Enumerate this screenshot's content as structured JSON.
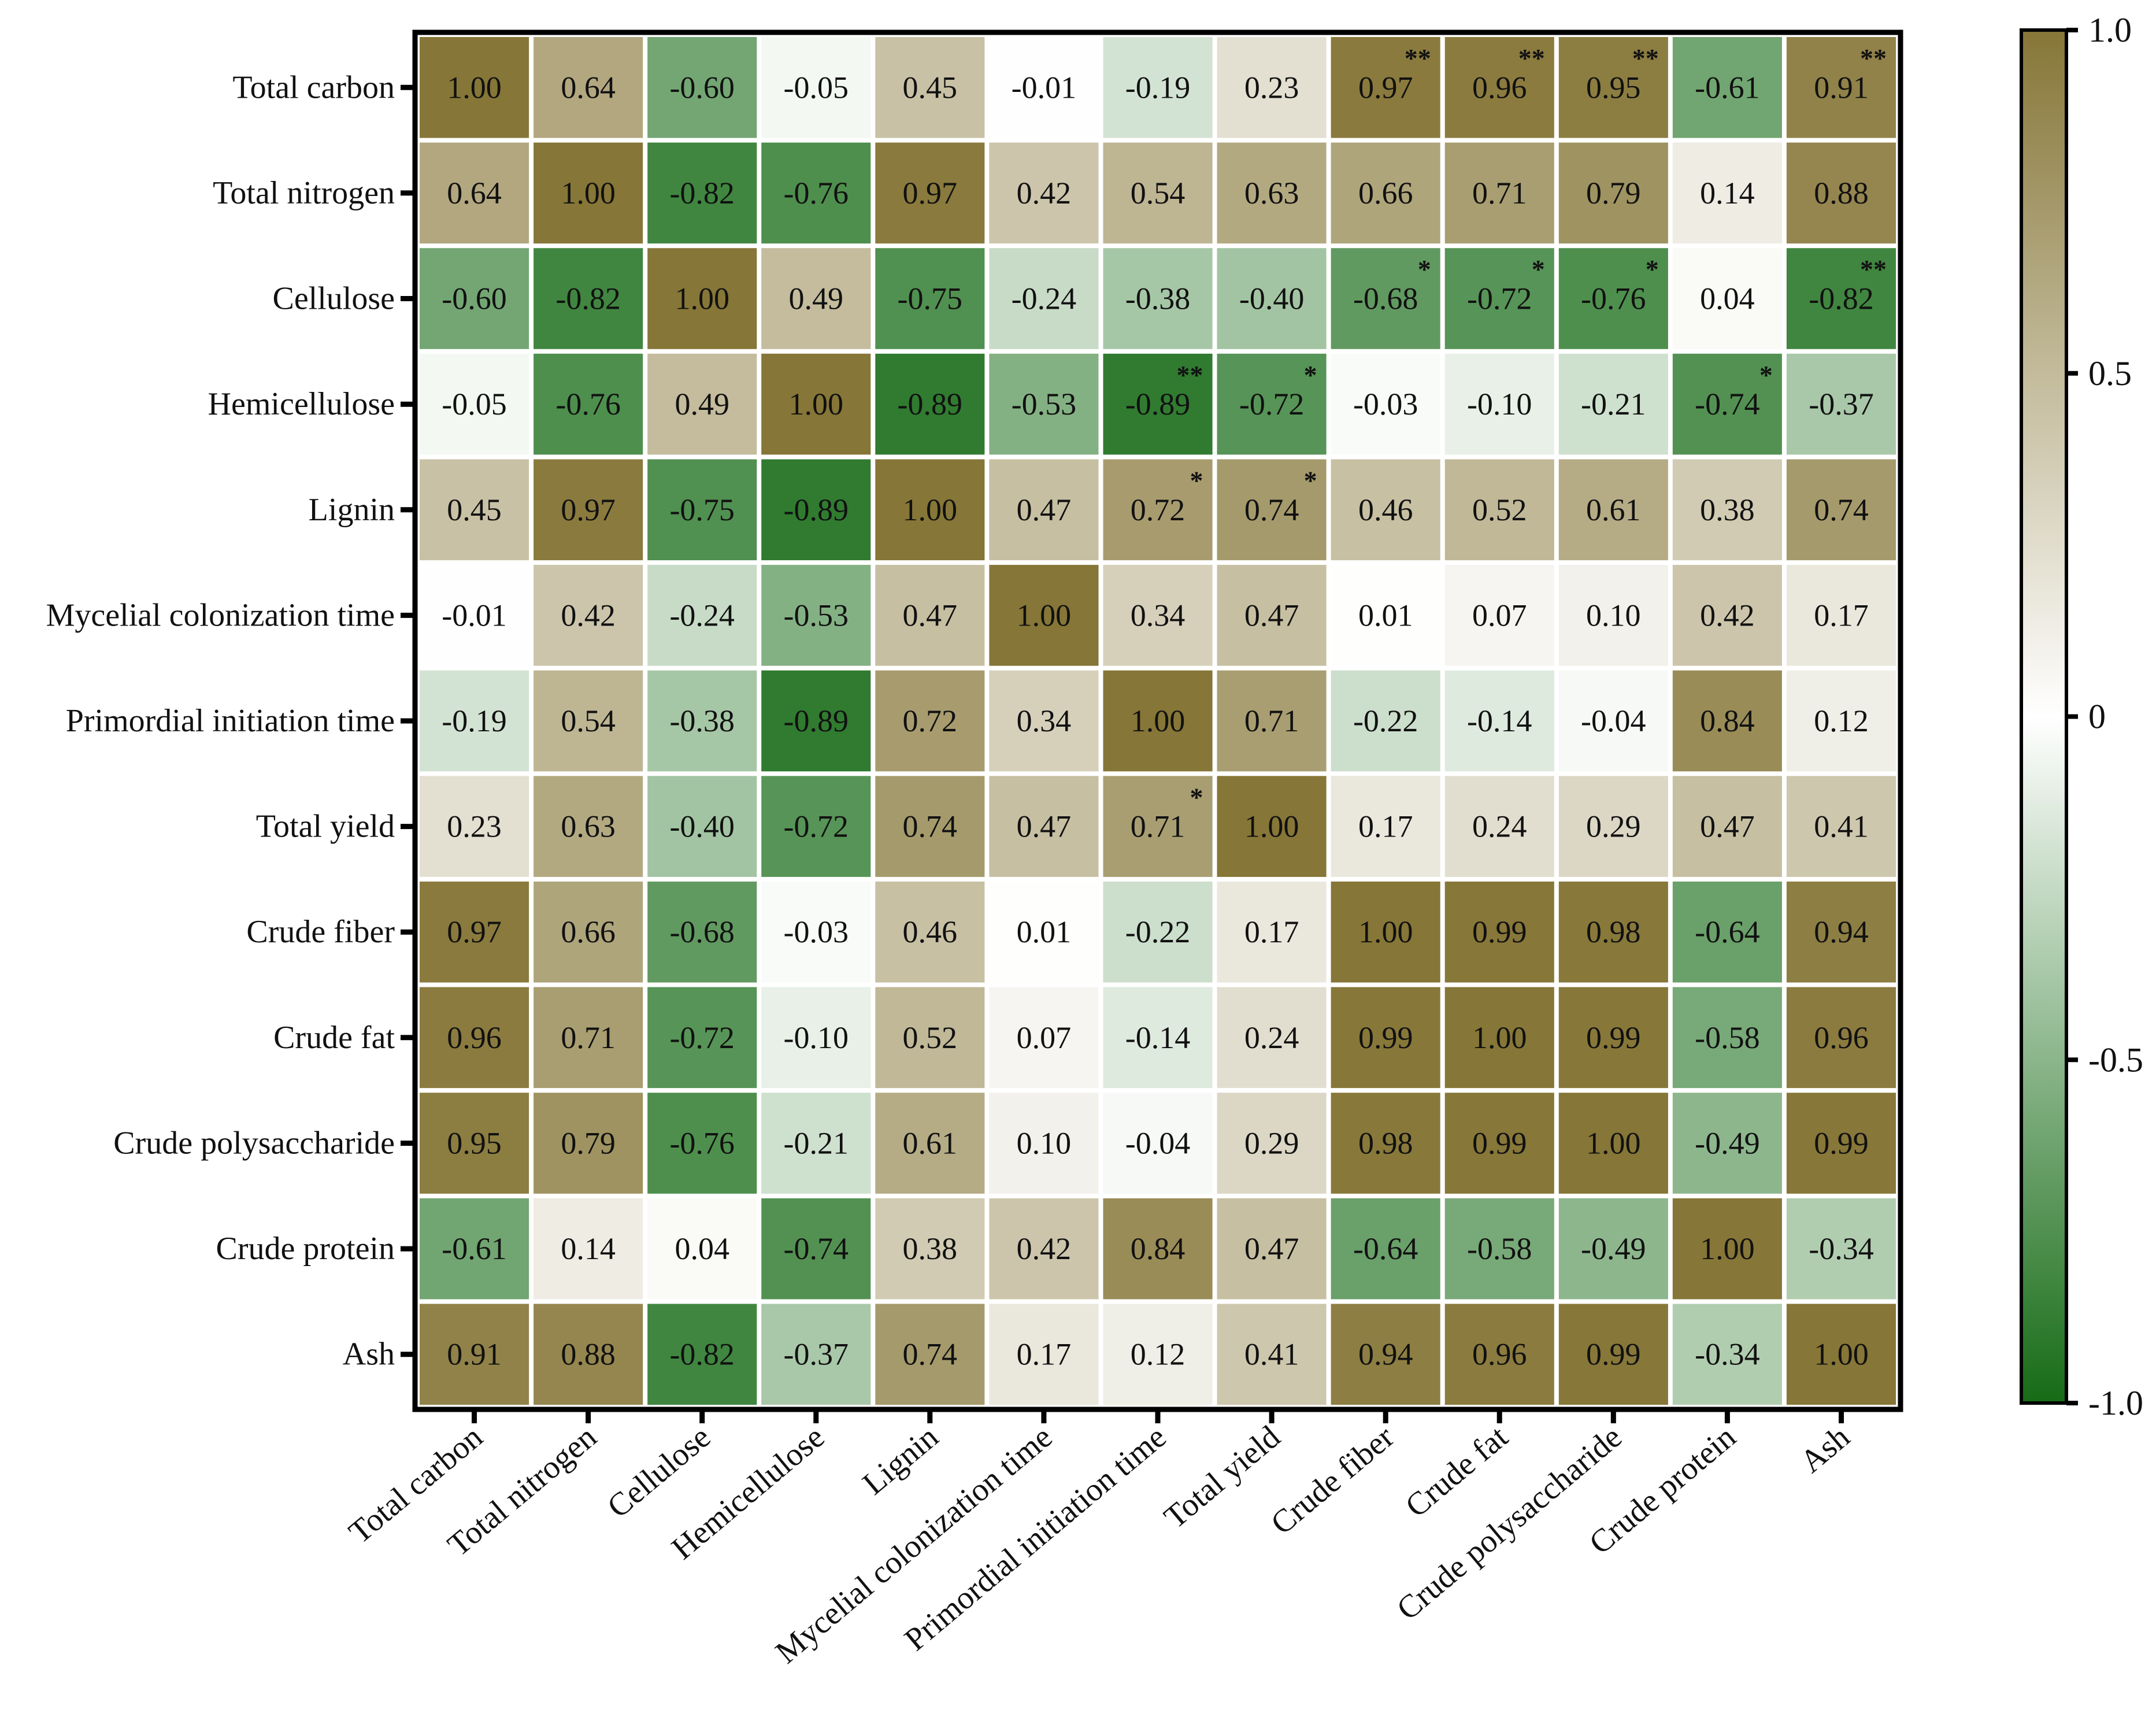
{
  "chart_data": {
    "type": "heatmap",
    "title": "",
    "variables": [
      "Total carbon",
      "Total nitrogen",
      "Cellulose",
      "Hemicellulose",
      "Lignin",
      "Mycelial colonization time",
      "Primordial initiation time",
      "Total yield",
      "Crude fiber",
      "Crude fat",
      "Crude polysaccharide",
      "Crude protein",
      "Ash"
    ],
    "values": [
      [
        1.0,
        0.64,
        -0.6,
        -0.05,
        0.45,
        -0.01,
        -0.19,
        0.23,
        0.97,
        0.96,
        0.95,
        -0.61,
        0.91
      ],
      [
        0.64,
        1.0,
        -0.82,
        -0.76,
        0.97,
        0.42,
        0.54,
        0.63,
        0.66,
        0.71,
        0.79,
        0.14,
        0.88
      ],
      [
        -0.6,
        -0.82,
        1.0,
        0.49,
        -0.75,
        -0.24,
        -0.38,
        -0.4,
        -0.68,
        -0.72,
        -0.76,
        0.04,
        -0.82
      ],
      [
        -0.05,
        -0.76,
        0.49,
        1.0,
        -0.89,
        -0.53,
        -0.89,
        -0.72,
        -0.03,
        -0.1,
        -0.21,
        -0.74,
        -0.37
      ],
      [
        0.45,
        0.97,
        -0.75,
        -0.89,
        1.0,
        0.47,
        0.72,
        0.74,
        0.46,
        0.52,
        0.61,
        0.38,
        0.74
      ],
      [
        -0.01,
        0.42,
        -0.24,
        -0.53,
        0.47,
        1.0,
        0.34,
        0.47,
        0.01,
        0.07,
        0.1,
        0.42,
        0.17
      ],
      [
        -0.19,
        0.54,
        -0.38,
        -0.89,
        0.72,
        0.34,
        1.0,
        0.71,
        -0.22,
        -0.14,
        -0.04,
        0.84,
        0.12
      ],
      [
        0.23,
        0.63,
        -0.4,
        -0.72,
        0.74,
        0.47,
        0.71,
        1.0,
        0.17,
        0.24,
        0.29,
        0.47,
        0.41
      ],
      [
        0.97,
        0.66,
        -0.68,
        -0.03,
        0.46,
        0.01,
        -0.22,
        0.17,
        1.0,
        0.99,
        0.98,
        -0.64,
        0.94
      ],
      [
        0.96,
        0.71,
        -0.72,
        -0.1,
        0.52,
        0.07,
        -0.14,
        0.24,
        0.99,
        1.0,
        0.99,
        -0.58,
        0.96
      ],
      [
        0.95,
        0.79,
        -0.76,
        -0.21,
        0.61,
        0.1,
        -0.04,
        0.29,
        0.98,
        0.99,
        1.0,
        -0.49,
        0.99
      ],
      [
        -0.61,
        0.14,
        0.04,
        -0.74,
        0.38,
        0.42,
        0.84,
        0.47,
        -0.64,
        -0.58,
        -0.49,
        1.0,
        -0.34
      ],
      [
        0.91,
        0.88,
        -0.82,
        -0.37,
        0.74,
        0.17,
        0.12,
        0.41,
        0.94,
        0.96,
        0.99,
        -0.34,
        1.0
      ]
    ],
    "significance": [
      [
        "",
        "",
        "",
        "",
        "",
        "",
        "",
        "",
        "**",
        "**",
        "**",
        "",
        "**"
      ],
      [
        "",
        "",
        "",
        "",
        "",
        "",
        "",
        "",
        "",
        "",
        "",
        "",
        ""
      ],
      [
        "",
        "",
        "",
        "",
        "",
        "",
        "",
        "",
        "*",
        "*",
        "*",
        "",
        "**"
      ],
      [
        "",
        "",
        "",
        "",
        "",
        "",
        "**",
        "*",
        "",
        "",
        "",
        "*",
        ""
      ],
      [
        "",
        "",
        "",
        "",
        "",
        "",
        "*",
        "*",
        "",
        "",
        "",
        "",
        ""
      ],
      [
        "",
        "",
        "",
        "",
        "",
        "",
        "",
        "",
        "",
        "",
        "",
        "",
        ""
      ],
      [
        "",
        "",
        "",
        "",
        "",
        "",
        "",
        "",
        "",
        "",
        "",
        "",
        ""
      ],
      [
        "",
        "",
        "",
        "",
        "",
        "",
        "*",
        "",
        "",
        "",
        "",
        "",
        ""
      ],
      [
        "",
        "",
        "",
        "",
        "",
        "",
        "",
        "",
        "",
        "",
        "",
        "",
        ""
      ],
      [
        "",
        "",
        "",
        "",
        "",
        "",
        "",
        "",
        "",
        "",
        "",
        "",
        ""
      ],
      [
        "",
        "",
        "",
        "",
        "",
        "",
        "",
        "",
        "",
        "",
        "",
        "",
        ""
      ],
      [
        "",
        "",
        "",
        "",
        "",
        "",
        "",
        "",
        "",
        "",
        "",
        "",
        ""
      ],
      [
        "",
        "",
        "",
        "",
        "",
        "",
        "",
        "",
        "",
        "",
        "",
        "",
        ""
      ]
    ],
    "colorbar": {
      "min": -1.0,
      "max": 1.0,
      "ticks": [
        1.0,
        0.5,
        0,
        -0.5,
        -1.0
      ],
      "tick_labels": [
        "1.0",
        "0.5",
        "0",
        "-0.5",
        "-1.0"
      ],
      "colors": {
        "positive": "#867637",
        "neutral": "#ffffff",
        "negative": "#166b16"
      }
    }
  }
}
